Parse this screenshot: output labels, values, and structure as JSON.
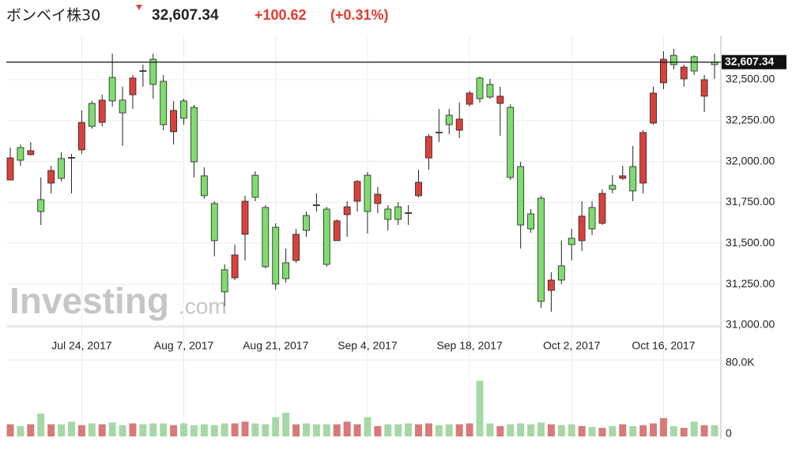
{
  "chart_data": {
    "type": "candlestick",
    "title": "ボンベイ株30",
    "price": "32,607.34",
    "change": "+100.62",
    "change_pct": "(+0.31%)",
    "watermark": "Investing",
    "watermark_suffix": ".com",
    "last_price": {
      "value": 32607.34,
      "label": "32,607.34"
    },
    "up_color": "#7fdc6e",
    "down_color": "#d9423b",
    "volume_up_color": "#a6d8a6",
    "volume_down_color": "#d77a78",
    "grid": true,
    "categories": [
      null,
      null,
      null,
      null,
      null,
      null,
      null,
      "Jul 24, 2017",
      null,
      null,
      null,
      null,
      null,
      null,
      null,
      null,
      null,
      "Aug 7, 2017",
      null,
      null,
      null,
      null,
      null,
      null,
      null,
      null,
      "Aug 21, 2017",
      null,
      null,
      null,
      null,
      null,
      null,
      null,
      null,
      "Sep 4, 2017",
      null,
      null,
      null,
      null,
      null,
      null,
      null,
      null,
      null,
      "Sep 18, 2017",
      null,
      null,
      null,
      null,
      null,
      null,
      null,
      null,
      null,
      "Oct 2, 2017",
      null,
      null,
      null,
      null,
      null,
      null,
      null,
      null,
      "Oct 16, 2017",
      null,
      null,
      null,
      null,
      null
    ],
    "open": [
      32022,
      32008,
      32066,
      31694,
      31945,
      31897,
      32020,
      32239,
      32215,
      32375,
      32370,
      32297,
      32510,
      32550,
      32471,
      32225,
      32312,
      32264,
      31998,
      31791,
      31516,
      31203,
      31429,
      31757,
      31781,
      31357,
      31251,
      31284,
      31555,
      31579,
      31730,
      31371,
      31637,
      31723,
      31878,
      31694,
      31800,
      31646,
      31646,
      31682,
      31873,
      32153,
      32175,
      32225,
      32259,
      32418,
      32384,
      32394,
      32399,
      31902,
      31612,
      31588,
      31145,
      31275,
      31275,
      31492,
      31666,
      31588,
      31805,
      31830,
      31912,
      31820,
      32177,
      32418,
      32625,
      32592,
      32577,
      32553,
      32500,
      32592
    ],
    "high": [
      32085,
      32104,
      32119,
      31902,
      31974,
      32056,
      32046,
      32312,
      32370,
      32408,
      32659,
      32457,
      32529,
      32592,
      32659,
      32529,
      32370,
      32384,
      32346,
      31965,
      31757,
      31371,
      31492,
      31791,
      31940,
      31733,
      31622,
      31468,
      31588,
      31694,
      31805,
      31723,
      31646,
      31757,
      31887,
      31936,
      31844,
      31733,
      31752,
      31733,
      31950,
      32167,
      32321,
      32321,
      32360,
      32432,
      32519,
      32505,
      32457,
      32350,
      31998,
      31709,
      31791,
      31323,
      31516,
      31588,
      31757,
      31757,
      31830,
      31916,
      31974,
      32095,
      32191,
      32457,
      32674,
      32688,
      32592,
      32649,
      32529,
      32659
    ],
    "low": [
      31887,
      31974,
      32037,
      31612,
      31805,
      31878,
      31805,
      32046,
      32201,
      32215,
      32336,
      32095,
      32321,
      32457,
      32384,
      32191,
      32104,
      32225,
      31902,
      31772,
      31420,
      31116,
      31275,
      31395,
      31757,
      31347,
      31217,
      31260,
      31381,
      31540,
      31694,
      31357,
      31516,
      31540,
      31694,
      31559,
      31685,
      31579,
      31612,
      31612,
      31781,
      31950,
      32119,
      32167,
      32143,
      32336,
      32360,
      32384,
      32157,
      31887,
      31468,
      31564,
      31106,
      31082,
      31251,
      31395,
      31453,
      31550,
      31612,
      31805,
      31887,
      31757,
      31805,
      32225,
      32442,
      32563,
      32457,
      32529,
      32302,
      32505
    ],
    "close": [
      31887,
      32085,
      32042,
      31767,
      31868,
      32018,
      32025,
      32071,
      32355,
      32239,
      32514,
      32375,
      32408,
      32555,
      32625,
      32490,
      32182,
      32370,
      32331,
      31912,
      31743,
      31338,
      31289,
      31555,
      31916,
      31719,
      31598,
      31381,
      31395,
      31670,
      31735,
      31709,
      31516,
      31675,
      31757,
      31916,
      31743,
      31709,
      31723,
      31688,
      31791,
      32022,
      32180,
      32283,
      32191,
      32350,
      32510,
      32471,
      32355,
      32331,
      31969,
      31680,
      31776,
      31212,
      31362,
      31531,
      31516,
      31719,
      31622,
      31854,
      31897,
      31969,
      31868,
      32235,
      32481,
      32649,
      32505,
      32640,
      32399,
      32607.34
    ],
    "volume": [
      11000,
      9000,
      11000,
      23000,
      11000,
      11000,
      14000,
      10000,
      12000,
      11000,
      13000,
      10000,
      12000,
      11000,
      12000,
      12000,
      10000,
      12000,
      10000,
      11000,
      10000,
      12000,
      12000,
      14000,
      12000,
      11000,
      19000,
      24000,
      11000,
      12000,
      11000,
      11000,
      11000,
      14000,
      11000,
      19000,
      9000,
      11000,
      11000,
      12000,
      11000,
      12000,
      10000,
      11000,
      11000,
      12000,
      60000,
      12000,
      9000,
      11000,
      12000,
      11000,
      13000,
      11000,
      10000,
      11000,
      9000,
      8000,
      7000,
      9000,
      11000,
      9000,
      10000,
      12000,
      18000,
      9000,
      7000,
      14000,
      10000,
      10000
    ],
    "ylim": [
      30990,
      32770
    ],
    "yticks": [
      {
        "value": 31000,
        "label": "31,000.00"
      },
      {
        "value": 31250,
        "label": "31,250.00"
      },
      {
        "value": 31500,
        "label": "31,500.00"
      },
      {
        "value": 31750,
        "label": "31,750.00"
      },
      {
        "value": 32000,
        "label": "32,000.00"
      },
      {
        "value": 32250,
        "label": "32,250.00"
      },
      {
        "value": 32500,
        "label": "32,500.00"
      }
    ],
    "volume_ylim": [
      0,
      80000
    ],
    "volume_ticks": [
      0,
      {
        "value": 80000,
        "label": "80.0K"
      }
    ]
  }
}
